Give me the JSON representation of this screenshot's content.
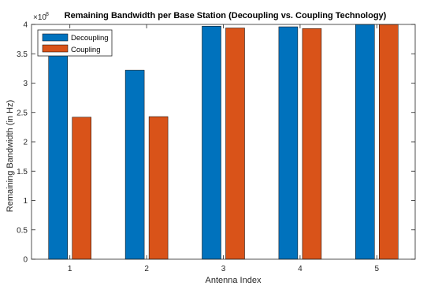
{
  "chart_data": {
    "type": "bar",
    "title": "Remaining Bandwidth per Base Station (Decoupling vs. Coupling Technology)",
    "xlabel": "Antenna Index",
    "ylabel": "Remaining Bandwidth (in Hz)",
    "y_exponent_label": "×10",
    "y_exponent_power": "8",
    "categories": [
      "1",
      "2",
      "3",
      "4",
      "5"
    ],
    "series": [
      {
        "name": "Decoupling",
        "color": "#0072BD",
        "values": [
          3.5,
          3.22,
          3.97,
          3.96,
          4.0
        ]
      },
      {
        "name": "Coupling",
        "color": "#D95319",
        "values": [
          2.42,
          2.43,
          3.94,
          3.93,
          4.0
        ]
      }
    ],
    "ylim": [
      0,
      4
    ],
    "yticks": [
      "0",
      "0.5",
      "1",
      "1.5",
      "2",
      "2.5",
      "3",
      "3.5",
      "4"
    ],
    "legend_position": "top-left",
    "grid": false
  }
}
